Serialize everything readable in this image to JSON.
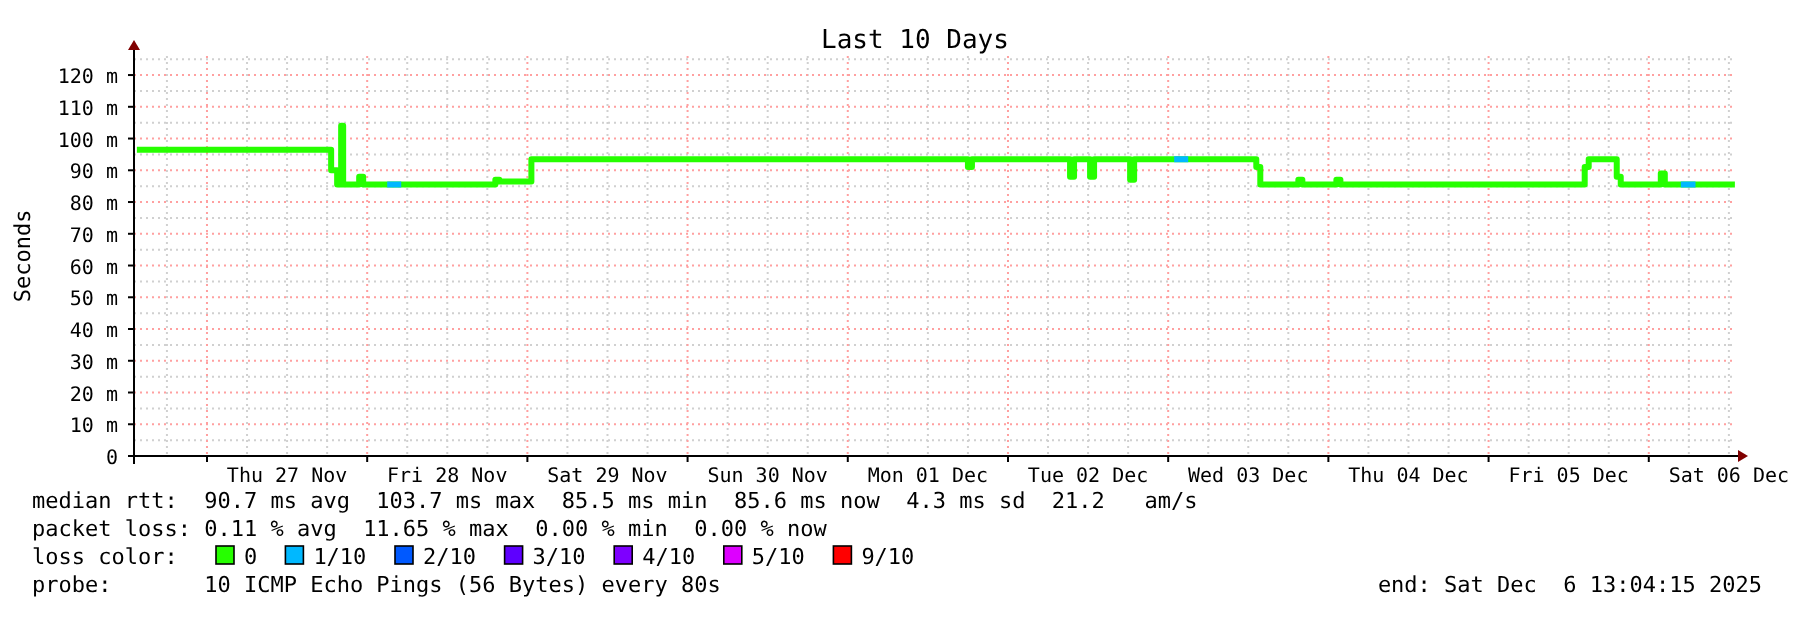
{
  "chart_data": {
    "type": "step",
    "title": "Last 10 Days",
    "ylabel": "Seconds",
    "legend_title": "loss color:",
    "legend": "bottom",
    "grid": true,
    "line_style": "solid",
    "marker": "none",
    "xlim": [
      "2025-11-26T13:04",
      "2025-12-06T13:04"
    ],
    "xticks": [
      {
        "value": "2025-11-27T12:00",
        "label": "Thu 27 Nov"
      },
      {
        "value": "2025-11-28T12:00",
        "label": "Fri 28 Nov"
      },
      {
        "value": "2025-11-29T12:00",
        "label": "Sat 29 Nov"
      },
      {
        "value": "2025-11-30T12:00",
        "label": "Sun 30 Nov"
      },
      {
        "value": "2025-12-01T12:00",
        "label": "Mon 01 Dec"
      },
      {
        "value": "2025-12-02T12:00",
        "label": "Tue 02 Dec"
      },
      {
        "value": "2025-12-03T12:00",
        "label": "Wed 03 Dec"
      },
      {
        "value": "2025-12-04T12:00",
        "label": "Thu 04 Dec"
      },
      {
        "value": "2025-12-05T12:00",
        "label": "Fri 05 Dec"
      },
      {
        "value": "2025-12-06T12:00",
        "label": "Sat 06 Dec"
      }
    ],
    "ylim": [
      0,
      126
    ],
    "yticks": [
      0,
      {
        "value": 10,
        "label": "10 m"
      },
      {
        "value": 20,
        "label": "20 m"
      },
      {
        "value": 30,
        "label": "30 m"
      },
      {
        "value": 40,
        "label": "40 m"
      },
      {
        "value": 50,
        "label": "50 m"
      },
      {
        "value": 60,
        "label": "60 m"
      },
      {
        "value": 70,
        "label": "70 m"
      },
      {
        "value": 80,
        "label": "80 m"
      },
      {
        "value": 90,
        "label": "90 m"
      },
      {
        "value": 100,
        "label": "100 m"
      },
      {
        "value": 110,
        "label": "110 m"
      },
      {
        "value": 120,
        "label": "120 m"
      }
    ],
    "series": [
      {
        "name": "0",
        "color": "#26ff00",
        "x": [
          "2025-11-26T13:30",
          "2025-11-27T18:36",
          "2025-11-27T19:30",
          "2025-11-27T20:06",
          "2025-11-27T20:24",
          "2025-11-27T22:48",
          "2025-11-27T23:24",
          "2025-11-28T19:12",
          "2025-11-28T19:48",
          "2025-11-29T00:36",
          "2025-12-01T18:00",
          "2025-12-01T18:36",
          "2025-12-02T09:18",
          "2025-12-02T09:54",
          "2025-12-02T12:18",
          "2025-12-02T12:54",
          "2025-12-02T18:18",
          "2025-12-02T18:54",
          "2025-12-03T13:12",
          "2025-12-03T13:48",
          "2025-12-03T19:30",
          "2025-12-03T20:06",
          "2025-12-04T01:12",
          "2025-12-04T01:48",
          "2025-12-05T14:24",
          "2025-12-05T15:00",
          "2025-12-05T19:12",
          "2025-12-05T19:48",
          "2025-12-06T01:48",
          "2025-12-06T02:24",
          "2025-12-06T12:54"
        ],
        "values": [
          96.5,
          90,
          85.5,
          104,
          85.5,
          88,
          85.5,
          87,
          86.5,
          93.5,
          91,
          93.5,
          88,
          93.5,
          88,
          93.5,
          87,
          93.5,
          91,
          85.5,
          87,
          85.5,
          87,
          85.5,
          91,
          93.5,
          88,
          85.5,
          89,
          85.5,
          85.5
        ]
      },
      {
        "name": "1/10",
        "color": "#00b8ff",
        "x": [
          "2025-11-28T03:00",
          "2025-11-28T05:06",
          "2025-11-30T00:00",
          "2025-12-03T00:54",
          "2025-12-03T03:00",
          "2025-12-05T00:00",
          "2025-12-06T04:48",
          "2025-12-06T07:00"
        ],
        "values": [
          85.5,
          85.5,
          null,
          93.5,
          93.5,
          null,
          85.5,
          85.5
        ]
      },
      {
        "name": "2/10",
        "color": "#0059ff"
      },
      {
        "name": "3/10",
        "color": "#5e00ff"
      },
      {
        "name": "4/10",
        "color": "#7e00ff"
      },
      {
        "name": "5/10",
        "color": "#dd00ff"
      },
      {
        "name": "9/10",
        "color": "#ff0000"
      }
    ],
    "annotations": [
      "median rtt:  90.7 ms avg  103.7 ms max  85.5 ms min  85.6 ms now  4.3 ms sd  21.2   am/s",
      "packet loss: 0.11 % avg  11.65 % max  0.00 % min  0.00 % now",
      "probe:       10 ICMP Echo Pings (56 Bytes) every 80s",
      "end: Sat Dec  6 13:04:15 2025"
    ]
  }
}
